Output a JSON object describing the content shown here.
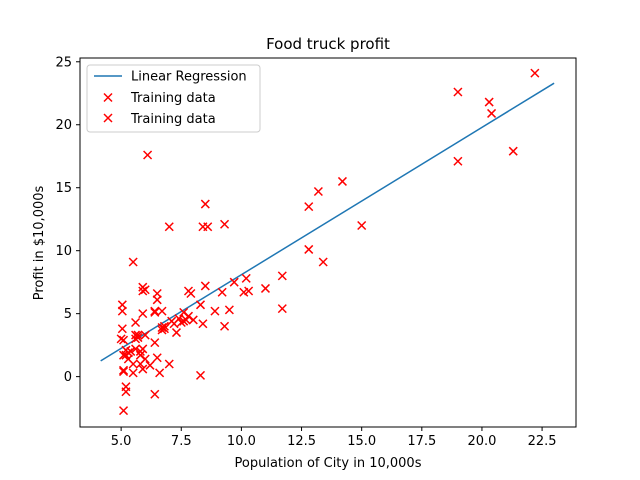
{
  "chart_data": {
    "type": "scatter",
    "title": "Food truck profit",
    "xlabel": "Population of City in 10,000s",
    "ylabel": "Profit in $10,000s",
    "xlim": [
      3.29,
      23.91
    ],
    "ylim": [
      -4.0,
      25.3
    ],
    "xticks": [
      5.0,
      7.5,
      10.0,
      12.5,
      15.0,
      17.5,
      20.0,
      22.5
    ],
    "xtick_labels": [
      "5.0",
      "7.5",
      "10.0",
      "12.5",
      "15.0",
      "17.5",
      "20.0",
      "22.5"
    ],
    "yticks": [
      0,
      5,
      10,
      15,
      20,
      25
    ],
    "ytick_labels": [
      "0",
      "5",
      "10",
      "15",
      "20",
      "25"
    ],
    "grid": false,
    "legend_position": "top-left",
    "legend": [
      "Linear Regression",
      "Training data",
      "Training data"
    ],
    "series": [
      {
        "name": "Linear Regression",
        "kind": "line",
        "color": "#1f77b4",
        "x": [
          4.15,
          23.0
        ],
        "y": [
          1.25,
          23.3
        ]
      },
      {
        "name": "Training data",
        "kind": "scatter",
        "marker": "x",
        "color": "#ff0000",
        "points": [
          [
            6.1,
            17.6
          ],
          [
            5.5,
            9.1
          ],
          [
            8.5,
            13.7
          ],
          [
            7.0,
            11.9
          ],
          [
            5.9,
            6.8
          ],
          [
            8.4,
            11.9
          ],
          [
            5.6,
            3.3
          ],
          [
            8.6,
            11.9
          ],
          [
            6.5,
            6.6
          ],
          [
            5.05,
            3.8
          ],
          [
            5.7,
            3.3
          ],
          [
            14.2,
            15.5
          ],
          [
            5.7,
            3.1
          ],
          [
            5.05,
            5.7
          ],
          [
            5.9,
            7.1
          ],
          [
            7.8,
            6.8
          ],
          [
            9.3,
            12.1
          ],
          [
            5.1,
            2.9
          ],
          [
            12.8,
            13.5
          ],
          [
            5.05,
            5.2
          ],
          [
            6.5,
            6.1
          ],
          [
            6.4,
            5.2
          ],
          [
            7.1,
            4.4
          ],
          [
            5.3,
            1.9
          ],
          [
            5.9,
            5.0
          ],
          [
            6.0,
            1.4
          ],
          [
            5.1,
            0.4
          ],
          [
            6.7,
            3.7
          ],
          [
            5.2,
            2.1
          ],
          [
            5.1,
            -2.7
          ],
          [
            6.4,
            5.1
          ],
          [
            7.6,
            5.1
          ],
          [
            6.8,
            3.8
          ],
          [
            5.2,
            -0.8
          ],
          [
            5.2,
            1.7
          ],
          [
            8.3,
            0.1
          ],
          [
            5.4,
            2.0
          ],
          [
            6.4,
            -1.4
          ],
          [
            6.6,
            0.3
          ],
          [
            5.6,
            4.3
          ],
          [
            6.7,
            5.2
          ],
          [
            5.2,
            -1.2
          ],
          [
            7.2,
            4.2
          ],
          [
            6.4,
            2.7
          ],
          [
            5.8,
            1.7
          ],
          [
            5.6,
            3.0
          ],
          [
            5.1,
            0.5
          ],
          [
            6.7,
            3.9
          ],
          [
            6.2,
            0.9
          ],
          [
            5.1,
            1.7
          ],
          [
            5.3,
            1.4
          ],
          [
            5.9,
            0.6
          ],
          [
            6.8,
            4.0
          ],
          [
            5.5,
            0.3
          ],
          [
            7.5,
            4.3
          ],
          [
            5.8,
            2.0
          ],
          [
            5.0,
            3.0
          ],
          [
            7.3,
            3.5
          ],
          [
            6.0,
            3.3
          ],
          [
            5.6,
            2.2
          ],
          [
            5.5,
            1.0
          ],
          [
            5.9,
            2.2
          ],
          [
            6.5,
            1.5
          ],
          [
            8.5,
            7.2
          ],
          [
            7.0,
            1.0
          ],
          [
            7.6,
            4.4
          ],
          [
            8.3,
            5.7
          ],
          [
            7.7,
            4.5
          ],
          [
            8.0,
            4.5
          ],
          [
            7.9,
            6.6
          ],
          [
            8.4,
            4.2
          ],
          [
            8.9,
            5.2
          ],
          [
            9.2,
            6.7
          ],
          [
            9.3,
            4.0
          ],
          [
            9.5,
            5.3
          ],
          [
            9.7,
            7.5
          ],
          [
            10.1,
            6.7
          ],
          [
            10.2,
            7.8
          ],
          [
            10.3,
            6.8
          ],
          [
            11.0,
            7.0
          ],
          [
            11.7,
            8.0
          ],
          [
            11.7,
            5.4
          ],
          [
            12.8,
            10.1
          ],
          [
            13.2,
            14.7
          ],
          [
            13.4,
            9.1
          ],
          [
            15.0,
            12.0
          ],
          [
            19.0,
            22.6
          ],
          [
            19.0,
            17.1
          ],
          [
            20.3,
            21.8
          ],
          [
            20.4,
            20.9
          ],
          [
            21.3,
            17.9
          ],
          [
            22.2,
            24.1
          ],
          [
            6.0,
            6.9
          ],
          [
            7.8,
            4.8
          ],
          [
            7.4,
            4.6
          ],
          [
            5.8,
            1.0
          ]
        ]
      }
    ]
  }
}
